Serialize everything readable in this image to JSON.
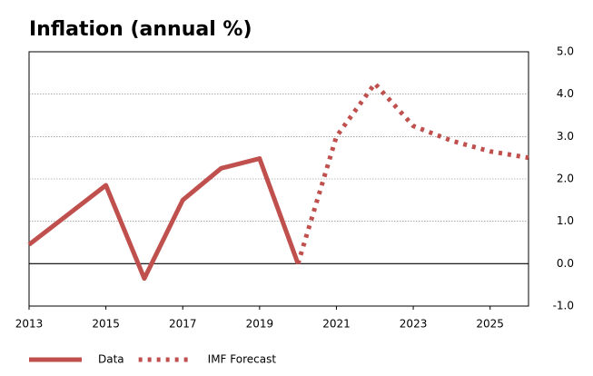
{
  "chart_data": {
    "type": "line",
    "title": "Inflation (annual %)",
    "x": [
      2013,
      2014,
      2015,
      2016,
      2017,
      2018,
      2019,
      2020,
      2021,
      2022,
      2023,
      2024,
      2025,
      2026
    ],
    "series": [
      {
        "name": "Data",
        "color": "#c0504d",
        "style": "solid",
        "values": [
          0.45,
          1.15,
          1.85,
          -0.35,
          1.5,
          2.25,
          2.48,
          0.0,
          null,
          null,
          null,
          null,
          null,
          null
        ]
      },
      {
        "name": "IMF Forecast",
        "color": "#c0504d",
        "style": "dotted",
        "values": [
          null,
          null,
          null,
          null,
          null,
          null,
          null,
          0.0,
          3.0,
          4.25,
          3.25,
          2.9,
          2.65,
          2.5
        ]
      }
    ],
    "xlim": [
      2013,
      2026
    ],
    "xticks": [
      2013,
      2015,
      2017,
      2019,
      2021,
      2023,
      2025
    ],
    "ylim": [
      -1,
      5
    ],
    "yticks": [
      {
        "value": -1,
        "label": "-1.0"
      },
      {
        "value": 0,
        "label": "0.0"
      },
      {
        "value": 1,
        "label": "1.0"
      },
      {
        "value": 2,
        "label": "2.0"
      },
      {
        "value": 3,
        "label": "3.0"
      },
      {
        "value": 4,
        "label": "4.0"
      },
      {
        "value": 5,
        "label": "5.0"
      }
    ],
    "grid": true,
    "legend": "bottom-left"
  }
}
